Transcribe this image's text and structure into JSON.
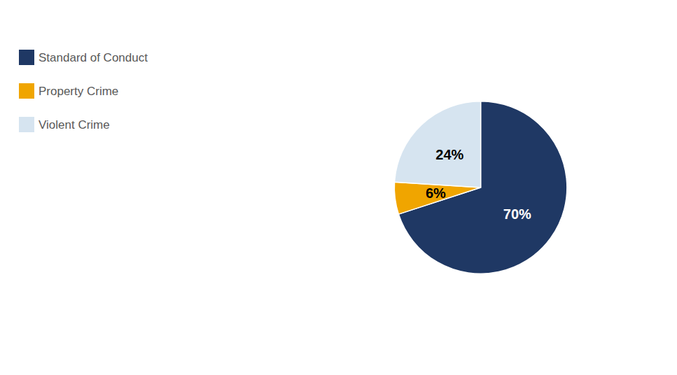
{
  "chart_data": {
    "type": "pie",
    "categories": [
      "Standard of Conduct",
      "Property Crime",
      "Violent Crime"
    ],
    "values": [
      70,
      6,
      24
    ],
    "value_labels": [
      "70%",
      "6%",
      "24%"
    ],
    "colors": [
      "#1F3864",
      "#F0A500",
      "#D6E4F0"
    ],
    "data_labels": true,
    "legend": "upper left"
  }
}
